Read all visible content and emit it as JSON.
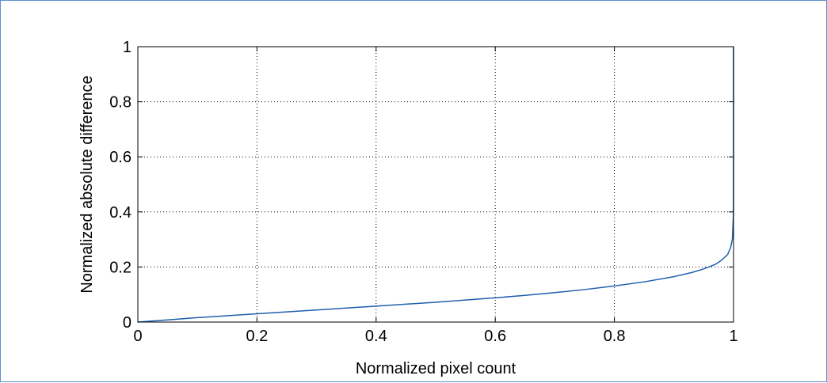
{
  "chart_data": {
    "type": "line",
    "title": "",
    "xlabel": "Normalized pixel count",
    "ylabel": "Normalized absolute difference",
    "xlim": [
      0,
      1
    ],
    "ylim": [
      0,
      1
    ],
    "xticks": [
      0,
      0.2,
      0.4,
      0.6,
      0.8,
      1
    ],
    "yticks": [
      0,
      0.2,
      0.4,
      0.6,
      0.8,
      1
    ],
    "xtick_labels": [
      "0",
      "0.2",
      "0.4",
      "0.6",
      "0.8",
      "1"
    ],
    "ytick_labels": [
      "0",
      "0.2",
      "0.4",
      "0.6",
      "0.8",
      "1"
    ],
    "grid": true,
    "series": [
      {
        "color": "#1f5fae",
        "x": [
          0,
          0.05,
          0.1,
          0.15,
          0.2,
          0.25,
          0.3,
          0.35,
          0.4,
          0.45,
          0.5,
          0.55,
          0.6,
          0.65,
          0.7,
          0.75,
          0.8,
          0.85,
          0.9,
          0.93,
          0.95,
          0.97,
          0.98,
          0.99,
          0.995,
          0.998,
          1.0,
          1.0
        ],
        "y": [
          0,
          0.008,
          0.016,
          0.023,
          0.03,
          0.037,
          0.044,
          0.051,
          0.058,
          0.065,
          0.072,
          0.08,
          0.088,
          0.097,
          0.107,
          0.118,
          0.131,
          0.146,
          0.165,
          0.18,
          0.193,
          0.21,
          0.225,
          0.245,
          0.27,
          0.3,
          0.4,
          1.0
        ]
      }
    ]
  }
}
